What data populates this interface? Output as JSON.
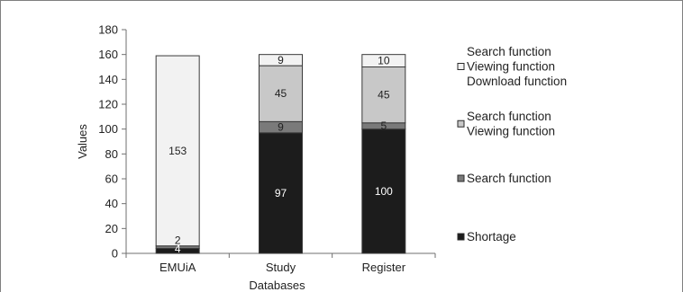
{
  "chart_data": {
    "type": "bar",
    "stacked": true,
    "categories": [
      "EMUiA",
      "Study",
      "Register"
    ],
    "series": [
      {
        "name": "Shortage",
        "values": [
          4,
          97,
          100
        ],
        "color": "#1c1c1c",
        "label_color": "#ffffff"
      },
      {
        "name": "Search function",
        "values": [
          2,
          9,
          5
        ],
        "color": "#7a7a7a",
        "label_color": "#222222"
      },
      {
        "name": "Search function\nViewing function",
        "values": [
          0,
          45,
          45
        ],
        "color": "#c8c8c8",
        "label_color": "#222222"
      },
      {
        "name": "Search function\nViewing function\nDownload function",
        "values": [
          153,
          9,
          10
        ],
        "color": "#f2f2f2",
        "label_color": "#222222"
      }
    ],
    "segment_labels": [
      [
        "4",
        "2",
        "",
        "153"
      ],
      [
        "97",
        "9",
        "45",
        "9"
      ],
      [
        "100",
        "5",
        "45",
        "10"
      ]
    ],
    "legend": [
      {
        "lines": [
          "Search function",
          "Viewing function",
          "Download function"
        ],
        "color": "#f2f2f2"
      },
      {
        "lines": [
          "Search function",
          "Viewing function"
        ],
        "color": "#c8c8c8"
      },
      {
        "lines": [
          "Search function"
        ],
        "color": "#7a7a7a"
      },
      {
        "lines": [
          "Shortage"
        ],
        "color": "#1c1c1c"
      }
    ],
    "legend_position": "right",
    "xlabel": "Databases",
    "ylabel": "Values",
    "ylim": [
      0,
      180
    ],
    "yticks": [
      "0",
      "20",
      "40",
      "60",
      "80",
      "100",
      "120",
      "140",
      "160",
      "180"
    ],
    "grid": false
  }
}
